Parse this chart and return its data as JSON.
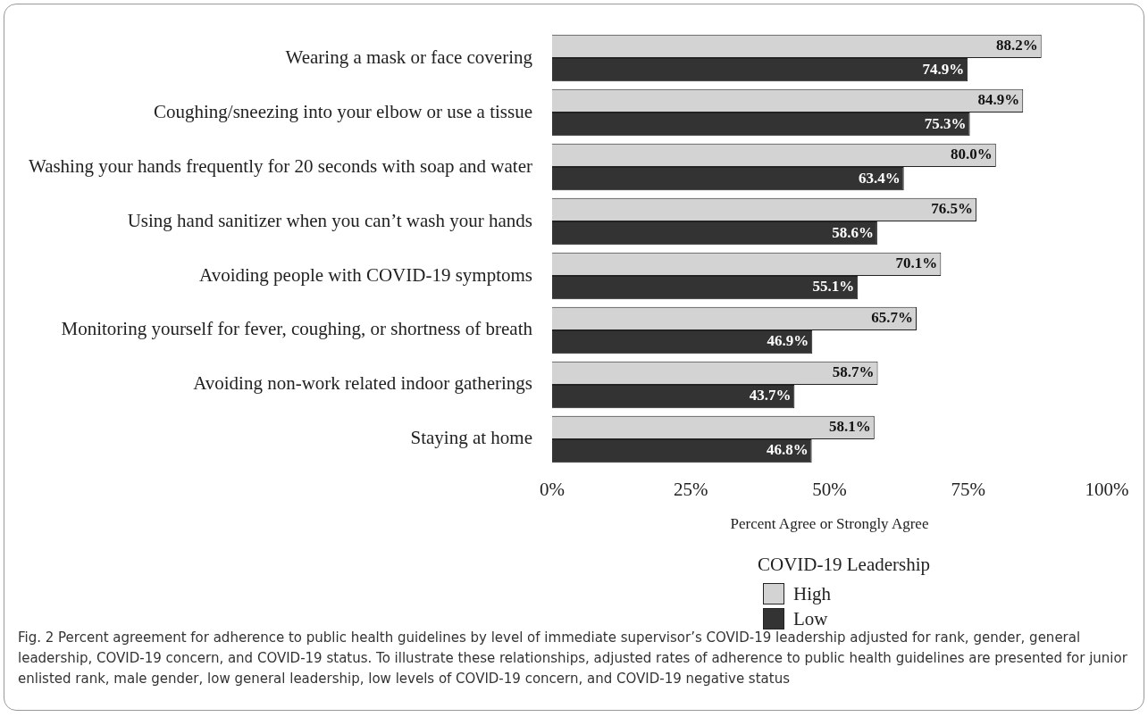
{
  "chart_data": {
    "type": "bar",
    "orientation": "horizontal",
    "xlabel": "Percent Agree or Strongly Agree",
    "legend_title": "COVID-19 Leadership",
    "legend": "bottom",
    "grid": false,
    "categories": [
      "Wearing a mask or face covering",
      "Coughing/sneezing into your elbow or use a tissue",
      "Washing your hands frequently for 20 seconds with soap and water",
      "Using hand sanitizer when you can’t wash your hands",
      "Avoiding people with COVID-19 symptoms",
      "Monitoring yourself for fever, coughing, or shortness of breath",
      "Avoiding non-work related indoor gatherings",
      "Staying at home"
    ],
    "series": [
      {
        "name": "High",
        "color": "#d3d3d3",
        "values": [
          88.2,
          84.9,
          80.0,
          76.5,
          70.1,
          65.7,
          58.7,
          58.1
        ],
        "value_labels": [
          "88.2%",
          "84.9%",
          "80.0%",
          "76.5%",
          "70.1%",
          "65.7%",
          "58.7%",
          "58.1%"
        ]
      },
      {
        "name": "Low",
        "color": "#333333",
        "values": [
          74.9,
          75.3,
          63.4,
          58.6,
          55.1,
          46.9,
          43.7,
          46.8
        ],
        "value_labels": [
          "74.9%",
          "75.3%",
          "63.4%",
          "58.6%",
          "55.1%",
          "46.9%",
          "43.7%",
          "46.8%"
        ]
      }
    ],
    "xlim": [
      0,
      100
    ],
    "xticks": [
      {
        "value": 0,
        "label": "0%"
      },
      {
        "value": 25,
        "label": "25%"
      },
      {
        "value": 50,
        "label": "50%"
      },
      {
        "value": 75,
        "label": "75%"
      },
      {
        "value": 100,
        "label": "100%"
      }
    ],
    "annotations": [
      "Fig. 2 Percent agreement for adherence to public health guidelines by level of immediate supervisor’s COVID-19 leadership adjusted for rank, gender, general leadership, COVID-19 concern, and COVID-19 status. To illustrate these relationships, adjusted rates of adherence to public health guidelines are presented for junior enlisted rank, male gender, low general leadership, low levels of COVID-19 concern, and COVID-19 negative status"
    ]
  }
}
